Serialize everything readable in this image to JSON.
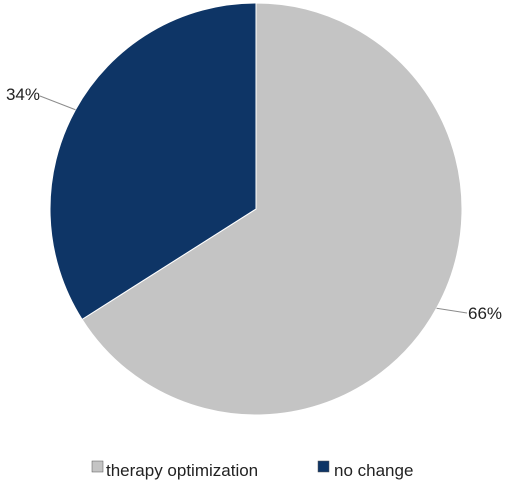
{
  "chart_data": {
    "type": "pie",
    "categories": [
      "therapy optimization",
      "no change"
    ],
    "values": [
      66,
      34
    ],
    "data_labels": [
      "66%",
      "34%"
    ],
    "colors": [
      "#c4c4c4",
      "#0e3566"
    ],
    "legend_position": "bottom",
    "start_angle": "12 o'clock, clockwise"
  }
}
